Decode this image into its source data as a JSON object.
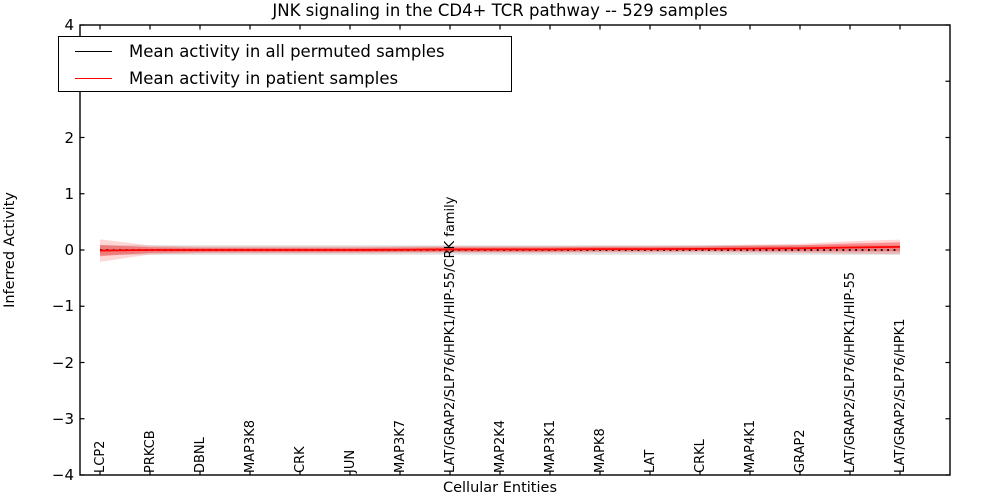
{
  "chart_data": {
    "type": "line",
    "title": "JNK signaling in the CD4+ TCR pathway -- 529 samples",
    "xlabel": "Cellular Entities",
    "ylabel": "Inferred Activity",
    "ylim": [
      -4,
      4
    ],
    "grid": false,
    "legend_position": "upper left",
    "yticks": [
      {
        "v": 4,
        "label": "4"
      },
      {
        "v": 3,
        "label": "3"
      },
      {
        "v": 2,
        "label": "2"
      },
      {
        "v": 1,
        "label": "1"
      },
      {
        "v": 0,
        "label": "0"
      },
      {
        "v": -1,
        "label": "−1"
      },
      {
        "v": -2,
        "label": "−2"
      },
      {
        "v": -3,
        "label": "−3"
      },
      {
        "v": -4,
        "label": "−4"
      }
    ],
    "categories": [
      "LCP2",
      "PRKCB",
      "DBNL",
      "MAP3K8",
      "CRK",
      "JUN",
      "MAP3K7",
      "LAT/GRAP2/SLP76/HPK1/HIP-55/CRK family",
      "MAP2K4",
      "MAP3K1",
      "MAPK8",
      "LAT",
      "CRKL",
      "MAP4K1",
      "GRAP2",
      "LAT/GRAP2/SLP76/HPK1/HIP-55",
      "LAT/GRAP2/SLP76/HPK1"
    ],
    "series": [
      {
        "name": "Mean activity in all permuted samples",
        "color": "#000000",
        "linestyle": "dotted",
        "values": [
          0,
          0,
          0,
          0,
          0,
          0,
          0,
          0,
          0,
          0,
          0,
          0,
          0,
          0,
          0,
          0,
          0
        ]
      },
      {
        "name": "Mean activity in patient samples",
        "color": "#ff0000",
        "linestyle": "solid",
        "values": [
          -0.01,
          0,
          0,
          0,
          0,
          0,
          0.005,
          0.01,
          0.01,
          0.01,
          0.015,
          0.015,
          0.02,
          0.025,
          0.03,
          0.045,
          0.055
        ]
      }
    ],
    "bands": [
      {
        "name": "permuted samples spread",
        "color": "#aaaaaa",
        "opacity": 0.35,
        "upper": [
          0.085,
          0.085,
          0.085,
          0.085,
          0.085,
          0.085,
          0.085,
          0.085,
          0.085,
          0.085,
          0.085,
          0.085,
          0.085,
          0.085,
          0.085,
          0.085,
          0.085
        ],
        "lower": [
          -0.085,
          -0.085,
          -0.085,
          -0.085,
          -0.085,
          -0.085,
          -0.085,
          -0.085,
          -0.085,
          -0.085,
          -0.085,
          -0.085,
          -0.085,
          -0.085,
          -0.085,
          -0.085,
          -0.085
        ]
      },
      {
        "name": "patient samples spread outer",
        "color": "#ff0000",
        "opacity": 0.16,
        "upper": [
          0.19,
          0.08,
          0.06,
          0.06,
          0.06,
          0.06,
          0.065,
          0.07,
          0.07,
          0.07,
          0.075,
          0.075,
          0.08,
          0.095,
          0.11,
          0.155,
          0.185
        ],
        "lower": [
          -0.21,
          -0.08,
          -0.06,
          -0.06,
          -0.06,
          -0.06,
          -0.055,
          -0.05,
          -0.05,
          -0.05,
          -0.045,
          -0.045,
          -0.04,
          -0.045,
          -0.05,
          -0.065,
          -0.075
        ]
      },
      {
        "name": "patient samples spread inner",
        "color": "#ff0000",
        "opacity": 0.34,
        "upper": [
          0.09,
          0.05,
          0.04,
          0.04,
          0.04,
          0.04,
          0.045,
          0.05,
          0.05,
          0.05,
          0.055,
          0.055,
          0.06,
          0.075,
          0.085,
          0.115,
          0.135
        ],
        "lower": [
          -0.11,
          -0.05,
          -0.04,
          -0.04,
          -0.04,
          -0.04,
          -0.035,
          -0.03,
          -0.03,
          -0.03,
          -0.025,
          -0.025,
          -0.02,
          -0.025,
          -0.025,
          -0.025,
          -0.025
        ]
      }
    ]
  },
  "legend": {
    "entries": [
      {
        "label": "Mean activity in all permuted samples",
        "color": "#000000"
      },
      {
        "label": "Mean activity in patient samples",
        "color": "#ff0000"
      }
    ]
  }
}
